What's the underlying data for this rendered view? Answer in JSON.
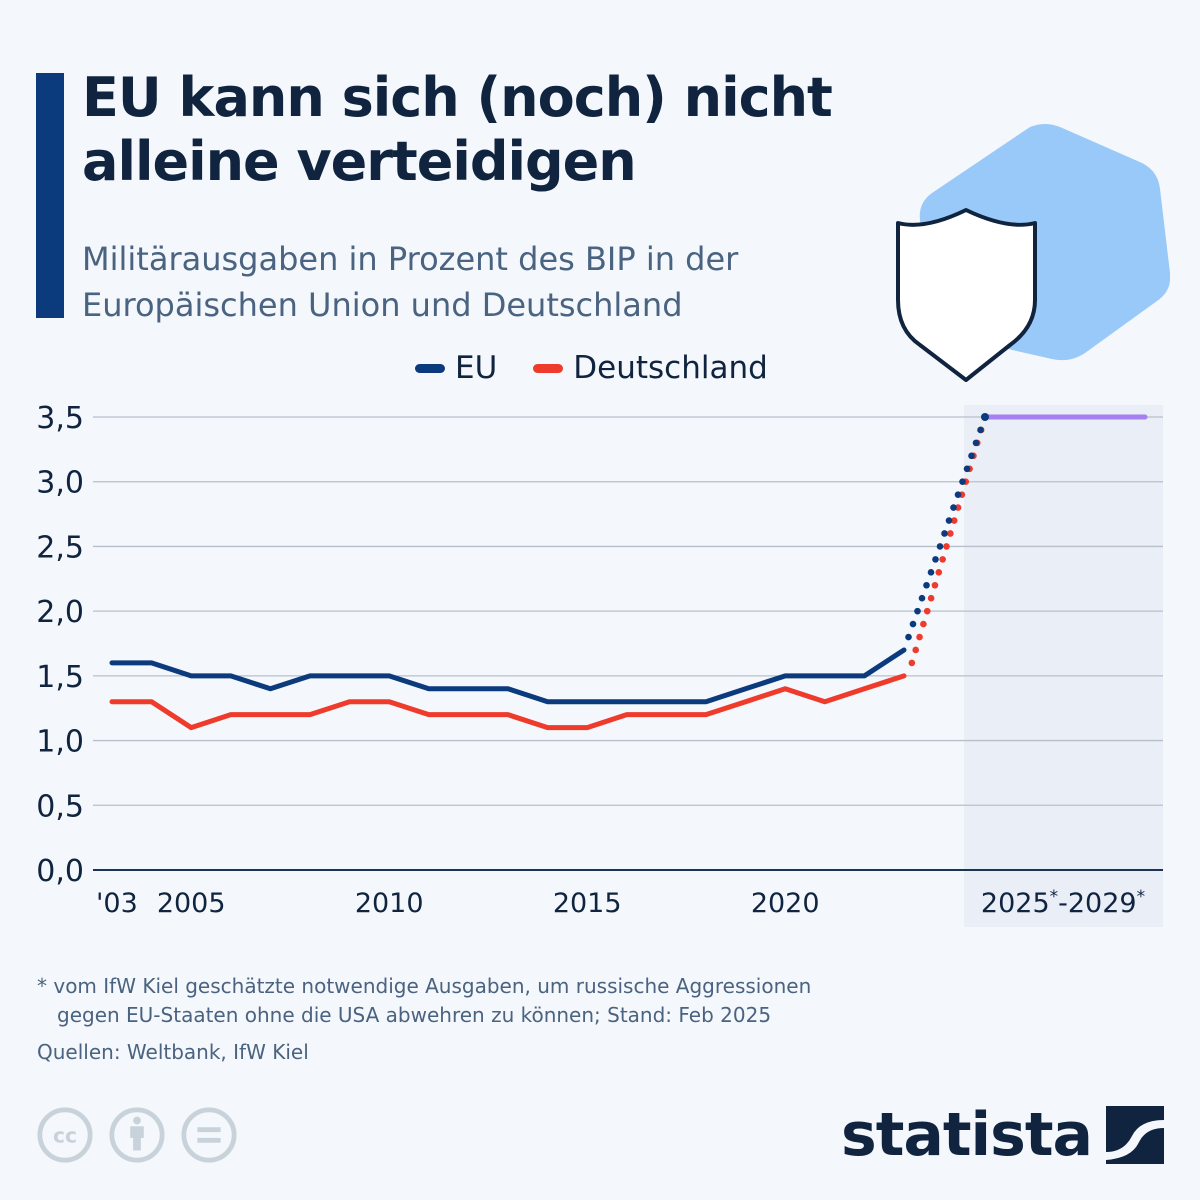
{
  "header": {
    "title": "EU kann sich (noch) nicht alleine verteidigen",
    "subtitle": "Militärausgaben in Prozent des BIP in der Europäischen Union und Deutschland"
  },
  "colors": {
    "eu": "#0b3a7d",
    "deutschland": "#ee3b2b",
    "forecast": "#a67ff0",
    "forecast_band": "#e9eef7",
    "grid": "#b7c0cb",
    "hexagon": "#99c9f8",
    "accent": "#0b3a7d"
  },
  "legend": [
    {
      "label": "EU",
      "color": "#0b3a7d"
    },
    {
      "label": "Deutschland",
      "color": "#ee3b2b"
    }
  ],
  "chart_data": {
    "type": "line",
    "title": "EU kann sich (noch) nicht alleine verteidigen",
    "subtitle": "Militärausgaben in Prozent des BIP in der Europäischen Union und Deutschland",
    "xlabel": "",
    "ylabel": "",
    "ylim": [
      0,
      3.5
    ],
    "yticks": [
      0,
      0.5,
      1.0,
      1.5,
      2.0,
      2.5,
      3.0,
      3.5
    ],
    "ytick_labels": [
      "0,0",
      "0,5",
      "1,0",
      "1,5",
      "2,0",
      "2,5",
      "3,0",
      "3,5"
    ],
    "xlim": [
      2003,
      2029
    ],
    "xtick_labels": [
      {
        "x": 2003,
        "label": "'03"
      },
      {
        "x": 2005,
        "label": "2005"
      },
      {
        "x": 2010,
        "label": "2010"
      },
      {
        "x": 2015,
        "label": "2015"
      },
      {
        "x": 2020,
        "label": "2020"
      }
    ],
    "forecast_label": {
      "from": "2025*",
      "to": "2029*"
    },
    "grid": true,
    "legend_position": "top",
    "x": [
      2003,
      2004,
      2005,
      2006,
      2007,
      2008,
      2009,
      2010,
      2011,
      2012,
      2013,
      2014,
      2015,
      2016,
      2017,
      2018,
      2019,
      2020,
      2021,
      2022,
      2023
    ],
    "series": [
      {
        "name": "EU",
        "values": [
          1.6,
          1.6,
          1.5,
          1.5,
          1.4,
          1.5,
          1.5,
          1.5,
          1.4,
          1.4,
          1.4,
          1.3,
          1.3,
          1.3,
          1.3,
          1.3,
          1.4,
          1.5,
          1.5,
          1.5,
          1.7
        ]
      },
      {
        "name": "Deutschland",
        "values": [
          1.3,
          1.3,
          1.1,
          1.2,
          1.2,
          1.2,
          1.3,
          1.3,
          1.2,
          1.2,
          1.2,
          1.1,
          1.1,
          1.2,
          1.2,
          1.2,
          1.3,
          1.4,
          1.3,
          1.4,
          1.5
        ]
      }
    ],
    "projection": {
      "description": "dotted transition from 2023 values to estimated requirement",
      "target_value": 3.5,
      "forecast_range": [
        "2025*",
        "2029*"
      ],
      "forecast_value": 3.5
    }
  },
  "footnote": {
    "line1": "* vom IfW Kiel geschätzte notwendige Ausgaben, um russische Aggressionen",
    "line2": "gegen EU-Staaten ohne die USA abwehren zu können; Stand: Feb 2025"
  },
  "source": "Quellen: Weltbank, IfW Kiel",
  "license_icons": [
    "cc-icon",
    "attribution-icon",
    "no-derivatives-icon"
  ],
  "brand": {
    "name": "statista"
  }
}
